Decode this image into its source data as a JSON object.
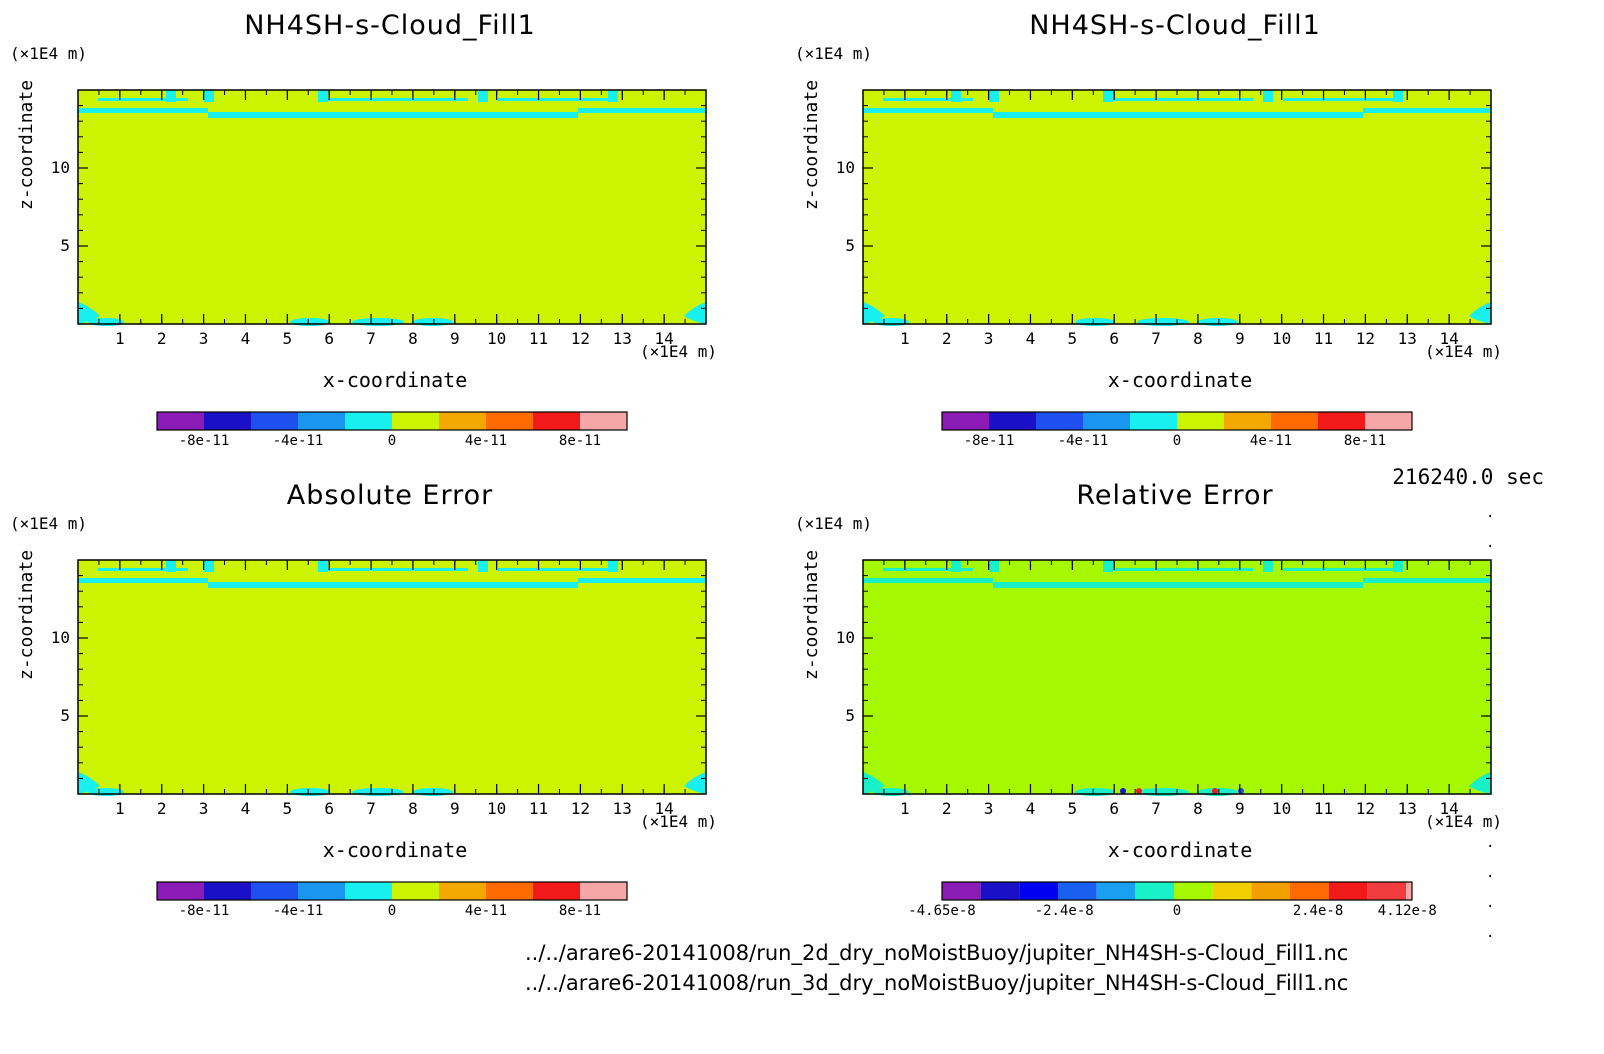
{
  "panels": [
    {
      "id": "p1",
      "title": "NH4SH-s-Cloud_Fill1",
      "field": "base",
      "colorbar": {
        "colors": [
          "#8a1cb5",
          "#1a10c8",
          "#1e50f0",
          "#1a96f0",
          "#18f0f0",
          "#ccf400",
          "#f2a800",
          "#ff6a00",
          "#f11a1a",
          "#f5a6a6"
        ],
        "labels": [
          "-8e-11",
          "-4e-11",
          "0",
          "4e-11",
          "8e-11"
        ]
      }
    },
    {
      "id": "p2",
      "title": "NH4SH-s-Cloud_Fill1",
      "field": "base",
      "colorbar": {
        "colors": [
          "#8a1cb5",
          "#1a10c8",
          "#1e50f0",
          "#1a96f0",
          "#18f0f0",
          "#ccf400",
          "#f2a800",
          "#ff6a00",
          "#f11a1a",
          "#f5a6a6"
        ],
        "labels": [
          "-8e-11",
          "-4e-11",
          "0",
          "4e-11",
          "8e-11"
        ]
      }
    },
    {
      "id": "p3",
      "title": "Absolute Error",
      "field": "abs",
      "colorbar": {
        "colors": [
          "#8a1cb5",
          "#1a10c8",
          "#1e50f0",
          "#1a96f0",
          "#18f0f0",
          "#ccf400",
          "#f2a800",
          "#ff6a00",
          "#f11a1a",
          "#f5a6a6"
        ],
        "labels": [
          "-8e-11",
          "-4e-11",
          "0",
          "4e-11",
          "8e-11"
        ]
      }
    },
    {
      "id": "p4",
      "title": "Relative Error",
      "field": "rel",
      "colorbar": {
        "colors": [
          "#8a1cb5",
          "#1a10c8",
          "#0000f0",
          "#1a60f0",
          "#1aa0f0",
          "#18f0c8",
          "#a6f800",
          "#f2d000",
          "#f2a000",
          "#ff6a00",
          "#f11a1a",
          "#f03c3c",
          "#f5a6a6"
        ],
        "labels": [
          "-4.65e-8",
          "-2.4e-8",
          "0",
          "2.4e-8",
          "4.12e-8"
        ]
      }
    }
  ],
  "axes": {
    "xlabel": "x-coordinate",
    "ylabel": "z-coordinate",
    "xunit": "(×1E4 m)",
    "zunit": "(×1E4 m)",
    "xticks": [
      "1",
      "2",
      "3",
      "4",
      "5",
      "6",
      "7",
      "8",
      "9",
      "10",
      "11",
      "12",
      "13",
      "14"
    ],
    "yticks": [
      "5",
      "10"
    ]
  },
  "time_label": "216240.0 sec",
  "file_paths": [
    "../../arare6-20141008/run_2d_dry_noMoistBuoy/jupiter_NH4SH-s-Cloud_Fill1.nc",
    "../../arare6-20141008/run_3d_dry_noMoistBuoy/jupiter_NH4SH-s-Cloud_Fill1.nc"
  ],
  "chart_data": [
    {
      "type": "heatmap",
      "title": "NH4SH-s-Cloud_Fill1",
      "xlabel": "x-coordinate",
      "ylabel": "z-coordinate",
      "xlim": [
        0,
        15
      ],
      "ylim": [
        0,
        15
      ],
      "x_unit": "(×1E4 m)",
      "z_unit": "(×1E4 m)",
      "colorbar_ticks": [
        -8e-11,
        -4e-11,
        0,
        4e-11,
        8e-11
      ],
      "dominant_value": 0
    },
    {
      "type": "heatmap",
      "title": "NH4SH-s-Cloud_Fill1",
      "xlabel": "x-coordinate",
      "ylabel": "z-coordinate",
      "xlim": [
        0,
        15
      ],
      "ylim": [
        0,
        15
      ],
      "x_unit": "(×1E4 m)",
      "z_unit": "(×1E4 m)",
      "colorbar_ticks": [
        -8e-11,
        -4e-11,
        0,
        4e-11,
        8e-11
      ],
      "dominant_value": 0
    },
    {
      "type": "heatmap",
      "title": "Absolute Error",
      "xlabel": "x-coordinate",
      "ylabel": "z-coordinate",
      "xlim": [
        0,
        15
      ],
      "ylim": [
        0,
        15
      ],
      "x_unit": "(×1E4 m)",
      "z_unit": "(×1E4 m)",
      "colorbar_ticks": [
        -8e-11,
        -4e-11,
        0,
        4e-11,
        8e-11
      ],
      "dominant_value": 0
    },
    {
      "type": "heatmap",
      "title": "Relative Error",
      "xlabel": "x-coordinate",
      "ylabel": "z-coordinate",
      "xlim": [
        0,
        15
      ],
      "ylim": [
        0,
        15
      ],
      "x_unit": "(×1E4 m)",
      "z_unit": "(×1E4 m)",
      "colorbar_ticks": [
        -4.65e-08,
        -2.4e-08,
        0,
        2.4e-08,
        4.12e-08
      ],
      "dominant_value": 0
    }
  ]
}
